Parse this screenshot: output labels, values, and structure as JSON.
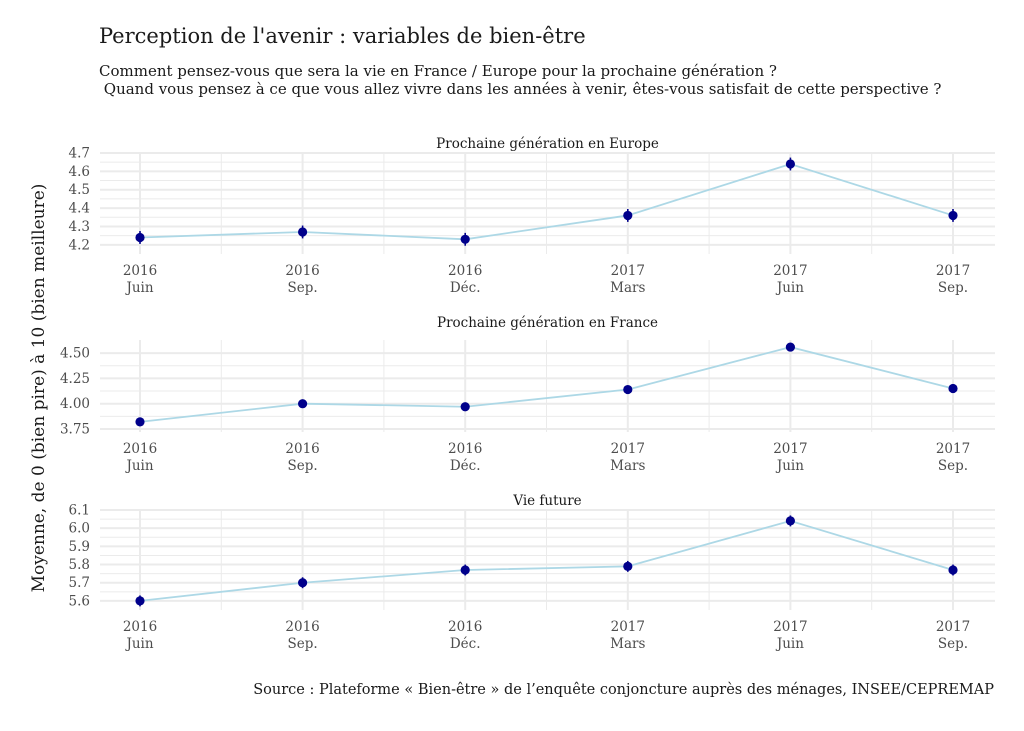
{
  "title": "Perception de l'avenir : variables de bien-être",
  "subtitle": "Comment pensez-vous que sera la vie en France / Europe pour la prochaine génération ?\n Quand vous pensez à ce que vous allez vivre dans les années à venir, êtes-vous satisfait de cette perspective ?",
  "caption": "Source : Plateforme « Bien-être » de l’enquête conjoncture auprès des ménages, INSEE/CEPREMAP",
  "colors": {
    "line": "#add8e6",
    "point": "#00008b",
    "grid": "#ebebeb"
  },
  "chart_data": {
    "type": "line",
    "ylabel": "Moyenne, de 0 (bien pire) à 10 (bien meilleure)",
    "categories": [
      {
        "year": "2016",
        "label": "Juin"
      },
      {
        "year": "2016",
        "label": "Sep."
      },
      {
        "year": "2016",
        "label": "Déc."
      },
      {
        "year": "2017",
        "label": "Mars"
      },
      {
        "year": "2017",
        "label": "Juin"
      },
      {
        "year": "2017",
        "label": "Sep."
      }
    ],
    "panels": [
      {
        "name": "Prochaine génération en Europe",
        "ylim": [
          4.15,
          4.7
        ],
        "ticks": [
          "4.2",
          "4.3",
          "4.4",
          "4.5",
          "4.6",
          "4.7"
        ],
        "values": [
          4.24,
          4.27,
          4.23,
          4.36,
          4.64,
          4.36
        ],
        "err": [
          0.035,
          0.035,
          0.035,
          0.035,
          0.035,
          0.035
        ]
      },
      {
        "name": "Prochaine génération en France",
        "ylim": [
          3.72,
          4.63
        ],
        "ticks": [
          "3.75",
          "4.00",
          "4.25",
          "4.50"
        ],
        "values": [
          3.82,
          4.0,
          3.97,
          4.14,
          4.56,
          4.15
        ],
        "err": [
          0.025,
          0.025,
          0.025,
          0.025,
          0.025,
          0.025
        ]
      },
      {
        "name": "Vie future",
        "ylim": [
          5.55,
          6.1
        ],
        "ticks": [
          "5.6",
          "5.7",
          "5.8",
          "5.9",
          "6.0",
          "6.1"
        ],
        "values": [
          5.6,
          5.7,
          5.77,
          5.79,
          6.04,
          5.77
        ],
        "err": [
          0.03,
          0.03,
          0.03,
          0.03,
          0.03,
          0.03
        ]
      }
    ]
  }
}
